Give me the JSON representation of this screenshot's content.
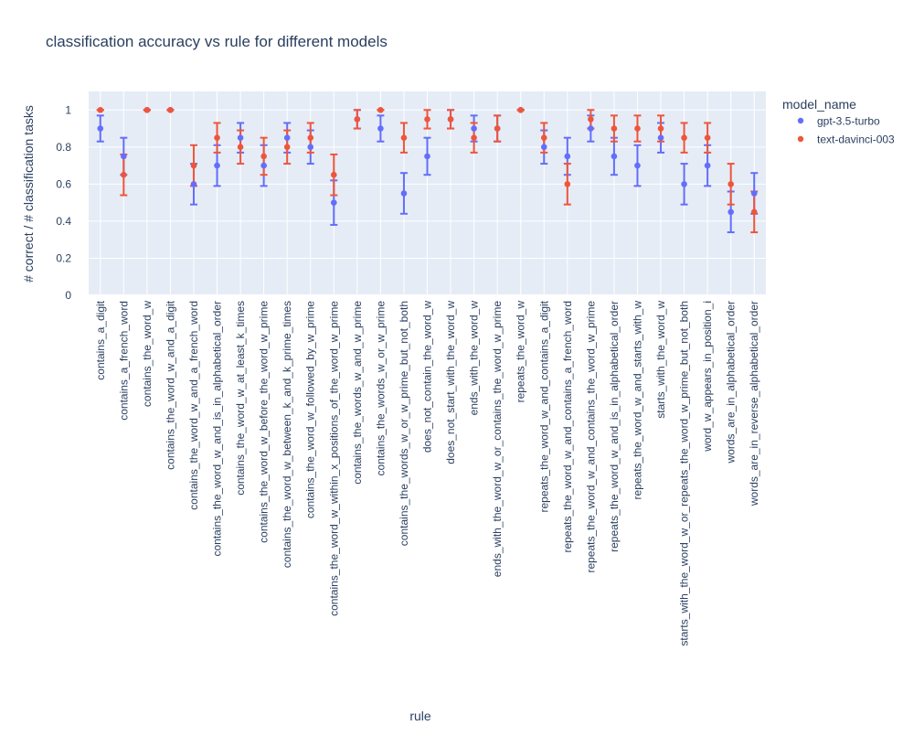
{
  "chart_data": {
    "type": "scatter",
    "title": "classification accuracy vs rule for different models",
    "xlabel": "rule",
    "ylabel": "# correct / # classification tasks",
    "ylim": [
      0,
      1.1
    ],
    "yticks": [
      0,
      0.2,
      0.4,
      0.6,
      0.8,
      1
    ],
    "ytick_labels": [
      "0",
      "0.2",
      "0.4",
      "0.6",
      "0.8",
      "1"
    ],
    "grid": true,
    "legend_title": "model_name",
    "legend_position": "top-right, outside plot",
    "categories": [
      "contains_a_digit",
      "contains_a_french_word",
      "contains_the_word_w",
      "contains_the_word_w_and_a_digit",
      "contains_the_word_w_and_a_french_word",
      "contains_the_word_w_and_is_in_alphabetical_order",
      "contains_the_word_w_at_least_k_times",
      "contains_the_word_w_before_the_word_w_prime",
      "contains_the_word_w_between_k_and_k_prime_times",
      "contains_the_word_w_followed_by_w_prime",
      "contains_the_word_w_within_x_positions_of_the_word_w_prime",
      "contains_the_words_w_and_w_prime",
      "contains_the_words_w_or_w_prime",
      "contains_the_words_w_or_w_prime_but_not_both",
      "does_not_contain_the_word_w",
      "does_not_start_with_the_word_w",
      "ends_with_the_word_w",
      "ends_with_the_word_w_or_contains_the_word_w_prime",
      "repeats_the_word_w",
      "repeats_the_word_w_and_contains_a_digit",
      "repeats_the_word_w_and_contains_a_french_word",
      "repeats_the_word_w_and_contains_the_word_w_prime",
      "repeats_the_word_w_and_is_in_alphabetical_order",
      "repeats_the_word_w_and_starts_with_w",
      "starts_with_the_word_w",
      "starts_with_the_word_w_or_repeats_the_word_w_prime_but_not_both",
      "word_w_appears_in_position_i",
      "words_are_in_alphabetical_order",
      "words_are_in_reverse_alphabetical_order"
    ],
    "series": [
      {
        "name": "gpt-3.5-turbo",
        "color": "#636efa",
        "values": [
          0.9,
          0.75,
          1.0,
          1.0,
          0.6,
          0.7,
          0.85,
          0.7,
          0.85,
          0.8,
          0.5,
          0.95,
          0.9,
          0.55,
          0.75,
          0.95,
          0.9,
          0.9,
          1.0,
          0.8,
          0.75,
          0.9,
          0.75,
          0.7,
          0.85,
          0.6,
          0.7,
          0.45,
          0.55
        ],
        "error": [
          0.07,
          0.1,
          0.0,
          0.0,
          0.11,
          0.11,
          0.08,
          0.11,
          0.08,
          0.09,
          0.12,
          0.05,
          0.07,
          0.11,
          0.1,
          0.05,
          0.07,
          0.07,
          0.0,
          0.09,
          0.1,
          0.07,
          0.1,
          0.11,
          0.08,
          0.11,
          0.11,
          0.11,
          0.11
        ]
      },
      {
        "name": "text-davinci-003",
        "color": "#ef553b",
        "values": [
          1.0,
          0.65,
          1.0,
          1.0,
          0.7,
          0.85,
          0.8,
          0.75,
          0.8,
          0.85,
          0.65,
          0.95,
          1.0,
          0.85,
          0.95,
          0.95,
          0.85,
          0.9,
          1.0,
          0.85,
          0.6,
          0.95,
          0.9,
          0.9,
          0.9,
          0.85,
          0.85,
          0.6,
          0.45
        ],
        "error": [
          0.0,
          0.11,
          0.0,
          0.0,
          0.11,
          0.08,
          0.09,
          0.1,
          0.09,
          0.08,
          0.11,
          0.05,
          0.0,
          0.08,
          0.05,
          0.05,
          0.08,
          0.07,
          0.0,
          0.08,
          0.11,
          0.05,
          0.07,
          0.07,
          0.07,
          0.08,
          0.08,
          0.11,
          0.11
        ]
      }
    ]
  }
}
